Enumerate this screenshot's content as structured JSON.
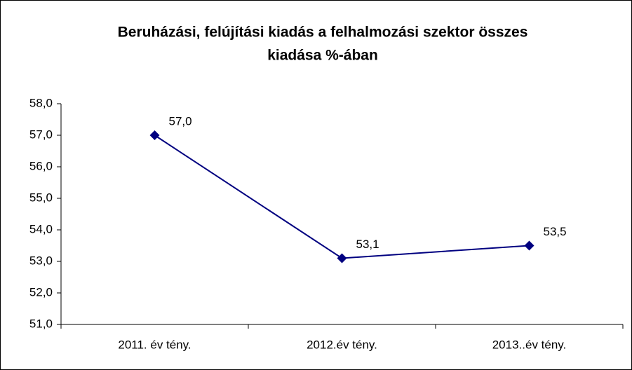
{
  "chart_data": {
    "type": "line",
    "title": [
      "Beruházási, felújítási kiadás a felhalmozási szektor összes",
      "kiadása %-ában"
    ],
    "categories": [
      "2011. év tény.",
      "2012.év tény.",
      "2013..év tény."
    ],
    "series": [
      {
        "color": "#000080",
        "values": [
          57.0,
          53.1,
          53.5
        ],
        "value_labels": [
          "57,0",
          "53,1",
          "53,5"
        ]
      }
    ],
    "ylim": [
      51,
      58
    ],
    "yticks": [
      {
        "value": 51,
        "label": "51,0"
      },
      {
        "value": 52,
        "label": "52,0"
      },
      {
        "value": 53,
        "label": "53,0"
      },
      {
        "value": 54,
        "label": "54,0"
      },
      {
        "value": 55,
        "label": "55,0"
      },
      {
        "value": 56,
        "label": "56,0"
      },
      {
        "value": 57,
        "label": "57,0"
      },
      {
        "value": 58,
        "label": "58,0"
      }
    ],
    "grid": false
  }
}
